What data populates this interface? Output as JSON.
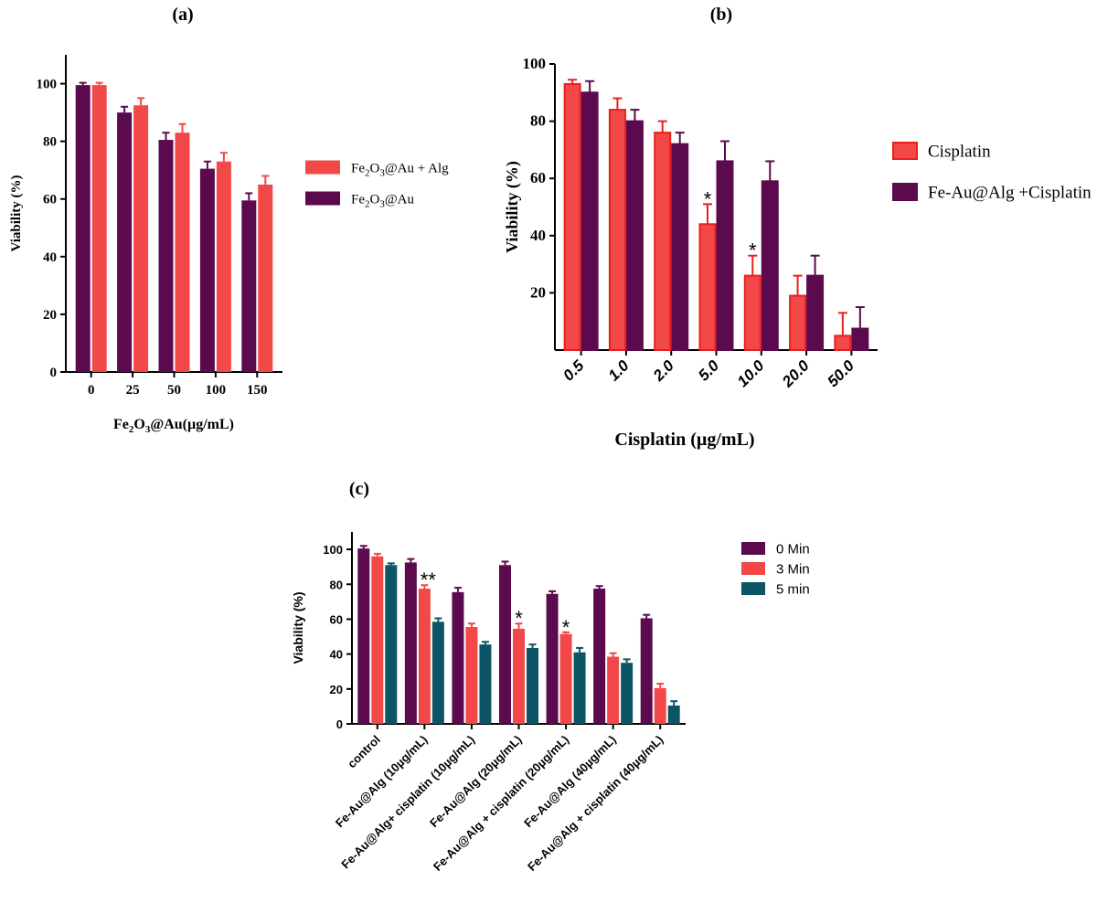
{
  "panels": {
    "a": {
      "label": "(a)"
    },
    "b": {
      "label": "(b)"
    },
    "c": {
      "label": "(c)"
    }
  },
  "colors": {
    "purple": "#5c0a4e",
    "red": "#f24848",
    "red_edge": "#e8201e",
    "teal": "#0b5566"
  },
  "chart_data": [
    {
      "panel": "a",
      "type": "bar",
      "title": "",
      "xlabel": "Fe2O3@Au(µg/mL)",
      "ylabel": "Viability (%)",
      "categories": [
        "0",
        "25",
        "50",
        "100",
        "150"
      ],
      "ylim": [
        0,
        110
      ],
      "yticks": [
        "0",
        "20",
        "40",
        "60",
        "80",
        "100"
      ],
      "legend_position": "right",
      "series": [
        {
          "name": "Fe2O3@Au",
          "color": "#5c0a4e",
          "values": [
            99.5,
            90,
            80.5,
            70.5,
            59.5
          ],
          "errors": [
            0.8,
            2,
            2.5,
            2.5,
            2.5
          ]
        },
        {
          "name": "Fe2O3@Au + Alg",
          "color": "#f24848",
          "values": [
            99.5,
            92.5,
            83,
            73,
            65
          ],
          "errors": [
            0.8,
            2.5,
            3,
            3,
            3
          ]
        }
      ]
    },
    {
      "panel": "b",
      "type": "bar",
      "title": "",
      "xlabel": "Cisplatin (µg/mL)",
      "ylabel": "Viability (%)",
      "categories": [
        "0.5",
        "1.0",
        "2.0",
        "5.0",
        "10.0",
        "20.0",
        "50.0"
      ],
      "ylim": [
        0,
        100
      ],
      "yticks": [
        "20",
        "40",
        "60",
        "80",
        "100"
      ],
      "legend_position": "right",
      "series": [
        {
          "name": "Cisplatin",
          "color": "#f24848",
          "values": [
            93,
            84,
            76,
            44,
            26,
            19,
            5
          ],
          "errors": [
            1.5,
            4,
            4,
            7,
            7,
            7,
            8
          ]
        },
        {
          "name": "Fe-Au@Alg +Cisplatin",
          "color": "#5c0a4e",
          "values": [
            90,
            80,
            72,
            66,
            59,
            26,
            7.5
          ],
          "errors": [
            4,
            4,
            4,
            7,
            7,
            7,
            7.5
          ]
        }
      ],
      "annotations": [
        {
          "category": "5.0",
          "text": "*"
        },
        {
          "category": "10.0",
          "text": "*"
        }
      ]
    },
    {
      "panel": "c",
      "type": "bar",
      "title": "",
      "xlabel": "",
      "ylabel": "Viability (%)",
      "categories": [
        "control",
        "Fe-Au@Alg  (10µg/mL)",
        "Fe-Au@Alg+ cisplatin  (10µg/mL)",
        "Fe-Au@Alg  (20µg/mL)",
        "Fe-Au@Alg + cisplatin  (20µg/mL)",
        "Fe-Au@Alg  (40µg/mL)",
        "Fe-Au@Alg + cisplatin  (40µg/mL)"
      ],
      "ylim": [
        0,
        110
      ],
      "yticks": [
        "0",
        "20",
        "40",
        "60",
        "80",
        "100"
      ],
      "legend_position": "top-right",
      "series": [
        {
          "name": "0 Min",
          "color": "#5c0a4e",
          "values": [
            100.5,
            92.5,
            75.5,
            91,
            74.5,
            77.5,
            60.5
          ],
          "errors": [
            1.5,
            2,
            2.5,
            2,
            1.5,
            1.5,
            2
          ]
        },
        {
          "name": "3 Min",
          "color": "#f24848",
          "values": [
            96,
            77.5,
            55.5,
            54.5,
            51.5,
            38.5,
            20.5
          ],
          "errors": [
            1.5,
            2,
            2,
            3,
            1,
            2,
            2.5
          ]
        },
        {
          "name": "5 min",
          "color": "#0b5566",
          "values": [
            91,
            58.5,
            45.5,
            43.5,
            41,
            35,
            10.5
          ],
          "errors": [
            1,
            2,
            1.5,
            2,
            2.5,
            2,
            2.5
          ]
        }
      ],
      "annotations": [
        {
          "category": "Fe-Au@Alg  (10µg/mL)",
          "text": "**"
        },
        {
          "category": "Fe-Au@Alg  (20µg/mL)",
          "text": "*"
        },
        {
          "category": "Fe-Au@Alg + cisplatin  (20µg/mL)",
          "text": "*"
        }
      ]
    }
  ]
}
